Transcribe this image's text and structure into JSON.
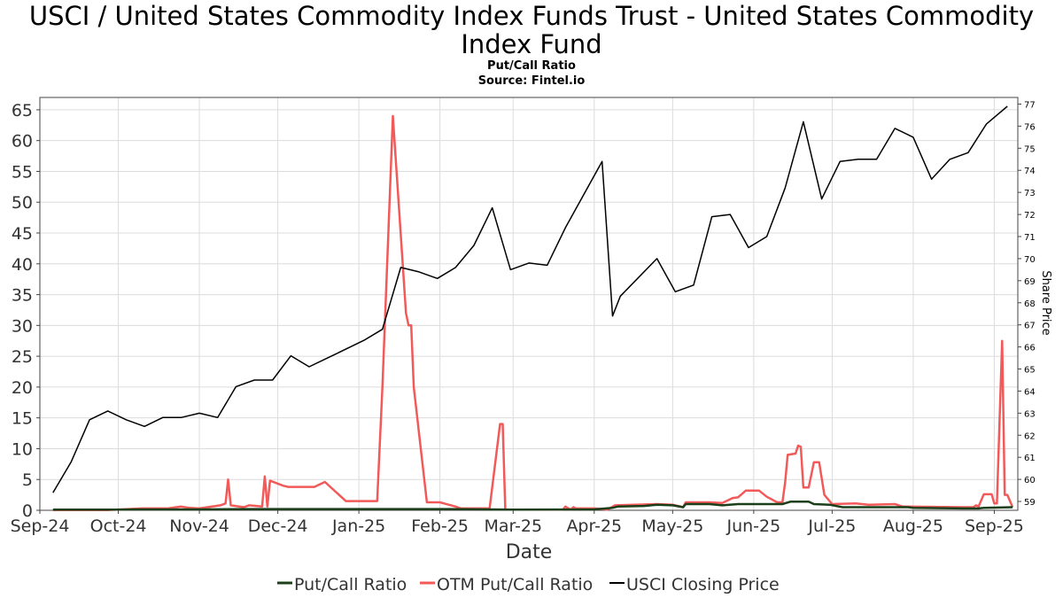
{
  "title": "USCI / United States Commodity Index Funds Trust - United States Commodity Index Fund",
  "subtitle": "Put/Call Ratio",
  "source": "Source: Fintel.io",
  "colors": {
    "put_call": "#1b3f1b",
    "otm_put_call": "#f25a5a",
    "closing_price": "#000000",
    "grid": "#dcdcdc"
  },
  "chart_data": {
    "type": "line",
    "title": "USCI / United States Commodity Index Funds Trust - United States Commodity Index Fund",
    "subtitle": "Put/Call Ratio",
    "xlabel": "Date",
    "ylabel": "",
    "y2label": "Share Price",
    "x_ticks": [
      "Sep-24",
      "Oct-24",
      "Nov-24",
      "Dec-24",
      "Jan-25",
      "Feb-25",
      "Mar-25",
      "Apr-25",
      "May-25",
      "Jun-25",
      "Jul-25",
      "Aug-25",
      "Sep-25"
    ],
    "x_tick_dates": [
      "2024-09-01",
      "2024-10-01",
      "2024-11-01",
      "2024-12-01",
      "2025-01-01",
      "2025-02-01",
      "2025-03-01",
      "2025-04-01",
      "2025-05-01",
      "2025-06-01",
      "2025-07-01",
      "2025-08-01",
      "2025-09-01"
    ],
    "xlim": [
      "2024-09-01",
      "2025-09-10"
    ],
    "ylim": [
      0,
      67
    ],
    "y_ticks": [
      0,
      5,
      10,
      15,
      20,
      25,
      30,
      35,
      40,
      45,
      50,
      55,
      60,
      65
    ],
    "y2lim": [
      58.6,
      77.3
    ],
    "y2_ticks": [
      59,
      60,
      61,
      62,
      63,
      64,
      65,
      66,
      67,
      68,
      69,
      70,
      71,
      72,
      73,
      74,
      75,
      76,
      77
    ],
    "grid": true,
    "legend_position": "bottom",
    "series": [
      {
        "name": "Put/Call Ratio",
        "axis": "left",
        "color": "#1b3f1b",
        "points": [
          [
            "2024-09-06",
            0.1
          ],
          [
            "2024-09-27",
            0.1
          ],
          [
            "2024-10-10",
            0.15
          ],
          [
            "2024-11-01",
            0.15
          ],
          [
            "2024-11-20",
            0.2
          ],
          [
            "2024-12-20",
            0.2
          ],
          [
            "2025-01-21",
            0.2
          ],
          [
            "2025-02-05",
            0.2
          ],
          [
            "2025-03-01",
            0.1
          ],
          [
            "2025-04-01",
            0.15
          ],
          [
            "2025-04-08",
            0.4
          ],
          [
            "2025-04-10",
            0.6
          ],
          [
            "2025-04-20",
            0.7
          ],
          [
            "2025-04-25",
            0.9
          ],
          [
            "2025-05-01",
            0.8
          ],
          [
            "2025-05-05",
            0.5
          ],
          [
            "2025-05-06",
            1.0
          ],
          [
            "2025-05-15",
            1.0
          ],
          [
            "2025-05-20",
            0.8
          ],
          [
            "2025-05-26",
            1.0
          ],
          [
            "2025-06-06",
            1.0
          ],
          [
            "2025-06-12",
            1.0
          ],
          [
            "2025-06-15",
            1.4
          ],
          [
            "2025-06-22",
            1.4
          ],
          [
            "2025-06-24",
            1.0
          ],
          [
            "2025-06-30",
            0.9
          ],
          [
            "2025-07-05",
            0.5
          ],
          [
            "2025-07-20",
            0.5
          ],
          [
            "2025-07-30",
            0.5
          ],
          [
            "2025-08-01",
            0.4
          ],
          [
            "2025-08-20",
            0.3
          ],
          [
            "2025-08-26",
            0.3
          ],
          [
            "2025-08-28",
            0.4
          ],
          [
            "2025-09-08",
            0.5
          ]
        ]
      },
      {
        "name": "OTM Put/Call Ratio",
        "axis": "left",
        "color": "#f25a5a",
        "points": [
          [
            "2024-09-06",
            0.05
          ],
          [
            "2024-09-27",
            0.05
          ],
          [
            "2024-10-10",
            0.3
          ],
          [
            "2024-10-20",
            0.3
          ],
          [
            "2024-10-25",
            0.6
          ],
          [
            "2024-10-28",
            0.4
          ],
          [
            "2024-11-01",
            0.3
          ],
          [
            "2024-11-09",
            0.8
          ],
          [
            "2024-11-11",
            1.1
          ],
          [
            "2024-11-12",
            5.0
          ],
          [
            "2024-11-13",
            0.8
          ],
          [
            "2024-11-18",
            0.5
          ],
          [
            "2024-11-20",
            0.8
          ],
          [
            "2024-11-25",
            0.6
          ],
          [
            "2024-11-26",
            5.5
          ],
          [
            "2024-11-27",
            0.6
          ],
          [
            "2024-11-28",
            4.8
          ],
          [
            "2024-12-03",
            4.0
          ],
          [
            "2024-12-05",
            3.8
          ],
          [
            "2024-12-15",
            3.8
          ],
          [
            "2024-12-19",
            4.6
          ],
          [
            "2024-12-27",
            1.5
          ],
          [
            "2025-01-01",
            1.5
          ],
          [
            "2025-01-08",
            1.5
          ],
          [
            "2025-01-10",
            20.0
          ],
          [
            "2025-01-14",
            64.0
          ],
          [
            "2025-01-19",
            32.0
          ],
          [
            "2025-01-20",
            30.0
          ],
          [
            "2025-01-21",
            30.0
          ],
          [
            "2025-01-22",
            20.0
          ],
          [
            "2025-01-27",
            1.3
          ],
          [
            "2025-02-01",
            1.3
          ],
          [
            "2025-02-07",
            0.6
          ],
          [
            "2025-02-09",
            0.3
          ],
          [
            "2025-02-20",
            0.3
          ],
          [
            "2025-02-24",
            14.0
          ],
          [
            "2025-02-25",
            14.0
          ],
          [
            "2025-02-26",
            0.1
          ],
          [
            "2025-03-20",
            0.1
          ],
          [
            "2025-03-21",
            0.6
          ],
          [
            "2025-03-23",
            0.1
          ],
          [
            "2025-03-24",
            0.5
          ],
          [
            "2025-03-25",
            0.3
          ],
          [
            "2025-04-01",
            0.3
          ],
          [
            "2025-04-06",
            0.1
          ],
          [
            "2025-04-09",
            0.8
          ],
          [
            "2025-04-25",
            1.0
          ],
          [
            "2025-05-01",
            0.9
          ],
          [
            "2025-05-05",
            0.5
          ],
          [
            "2025-05-06",
            1.3
          ],
          [
            "2025-05-15",
            1.3
          ],
          [
            "2025-05-20",
            1.2
          ],
          [
            "2025-05-24",
            2.0
          ],
          [
            "2025-05-26",
            2.1
          ],
          [
            "2025-05-29",
            3.2
          ],
          [
            "2025-06-03",
            3.2
          ],
          [
            "2025-06-06",
            2.2
          ],
          [
            "2025-06-10",
            1.3
          ],
          [
            "2025-06-12",
            1.3
          ],
          [
            "2025-06-13",
            4.5
          ],
          [
            "2025-06-14",
            9.0
          ],
          [
            "2025-06-17",
            9.2
          ],
          [
            "2025-06-18",
            10.5
          ],
          [
            "2025-06-19",
            10.3
          ],
          [
            "2025-06-20",
            3.7
          ],
          [
            "2025-06-22",
            3.7
          ],
          [
            "2025-06-24",
            7.8
          ],
          [
            "2025-06-26",
            7.8
          ],
          [
            "2025-06-28",
            2.5
          ],
          [
            "2025-07-01",
            1.0
          ],
          [
            "2025-07-10",
            1.1
          ],
          [
            "2025-07-15",
            0.9
          ],
          [
            "2025-07-25",
            1.0
          ],
          [
            "2025-07-28",
            0.6
          ],
          [
            "2025-08-20",
            0.5
          ],
          [
            "2025-08-24",
            0.5
          ],
          [
            "2025-08-25",
            0.8
          ],
          [
            "2025-08-26",
            0.6
          ],
          [
            "2025-08-28",
            2.6
          ],
          [
            "2025-08-31",
            2.6
          ],
          [
            "2025-09-01",
            1.1
          ],
          [
            "2025-09-02",
            1.1
          ],
          [
            "2025-09-04",
            27.5
          ],
          [
            "2025-09-05",
            2.5
          ],
          [
            "2025-09-06",
            2.5
          ],
          [
            "2025-09-08",
            0.5
          ]
        ]
      },
      {
        "name": "USCI Closing Price",
        "axis": "right",
        "color": "#000000",
        "points": [
          [
            "2024-09-06",
            59.4
          ],
          [
            "2024-09-13",
            60.8
          ],
          [
            "2024-09-20",
            62.7
          ],
          [
            "2024-09-27",
            63.1
          ],
          [
            "2024-10-04",
            62.7
          ],
          [
            "2024-10-11",
            62.4
          ],
          [
            "2024-10-18",
            62.8
          ],
          [
            "2024-10-25",
            62.8
          ],
          [
            "2024-11-01",
            63.0
          ],
          [
            "2024-11-08",
            62.8
          ],
          [
            "2024-11-15",
            64.2
          ],
          [
            "2024-11-22",
            64.5
          ],
          [
            "2024-11-29",
            64.5
          ],
          [
            "2024-12-06",
            65.6
          ],
          [
            "2024-12-13",
            65.1
          ],
          [
            "2024-12-20",
            65.5
          ],
          [
            "2024-12-27",
            65.9
          ],
          [
            "2025-01-03",
            66.3
          ],
          [
            "2025-01-10",
            66.8
          ],
          [
            "2025-01-17",
            69.6
          ],
          [
            "2025-01-24",
            69.4
          ],
          [
            "2025-01-31",
            69.1
          ],
          [
            "2025-02-07",
            69.6
          ],
          [
            "2025-02-14",
            70.6
          ],
          [
            "2025-02-21",
            72.3
          ],
          [
            "2025-02-28",
            69.5
          ],
          [
            "2025-03-07",
            69.8
          ],
          [
            "2025-03-14",
            69.7
          ],
          [
            "2025-03-21",
            71.4
          ],
          [
            "2025-03-28",
            72.9
          ],
          [
            "2025-04-04",
            74.4
          ],
          [
            "2025-04-08",
            67.4
          ],
          [
            "2025-04-11",
            68.3
          ],
          [
            "2025-04-25",
            70.0
          ],
          [
            "2025-05-02",
            68.5
          ],
          [
            "2025-05-09",
            68.8
          ],
          [
            "2025-05-16",
            71.9
          ],
          [
            "2025-05-23",
            72.0
          ],
          [
            "2025-05-30",
            70.5
          ],
          [
            "2025-06-06",
            71.0
          ],
          [
            "2025-06-13",
            73.2
          ],
          [
            "2025-06-20",
            76.2
          ],
          [
            "2025-06-27",
            72.7
          ],
          [
            "2025-07-04",
            74.4
          ],
          [
            "2025-07-11",
            74.5
          ],
          [
            "2025-07-18",
            74.5
          ],
          [
            "2025-07-25",
            75.9
          ],
          [
            "2025-08-01",
            75.5
          ],
          [
            "2025-08-08",
            73.6
          ],
          [
            "2025-08-15",
            74.5
          ],
          [
            "2025-08-22",
            74.8
          ],
          [
            "2025-08-29",
            76.1
          ],
          [
            "2025-09-06",
            76.9
          ]
        ]
      }
    ]
  }
}
